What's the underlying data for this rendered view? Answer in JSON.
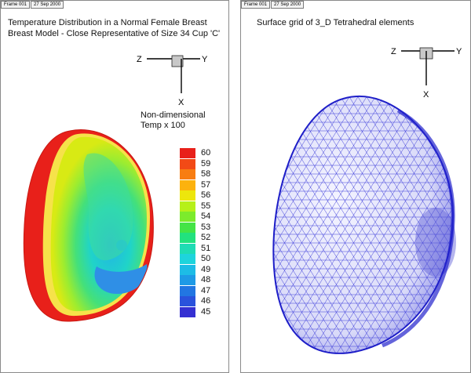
{
  "left_panel": {
    "tabs": [
      "Frame 001",
      "27 Sep 2000"
    ],
    "title_line1": "Temperature Distribution in a Normal Female Breast",
    "title_line2": "Breast Model - Close Representative of Size 34 Cup 'C'",
    "axes": {
      "z": "Z",
      "y": "Y",
      "x": "X"
    },
    "legend_title_line1": "Non-dimensional",
    "legend_title_line2": "Temp x 100",
    "legend_levels": [
      {
        "label": "60",
        "color": "#e8201a"
      },
      {
        "label": "59",
        "color": "#f24a16"
      },
      {
        "label": "58",
        "color": "#f87d12"
      },
      {
        "label": "57",
        "color": "#fcb20e"
      },
      {
        "label": "56",
        "color": "#ede60c"
      },
      {
        "label": "55",
        "color": "#b6f019"
      },
      {
        "label": "54",
        "color": "#7ceb2c"
      },
      {
        "label": "53",
        "color": "#44e446"
      },
      {
        "label": "52",
        "color": "#22e27e"
      },
      {
        "label": "51",
        "color": "#1fdcb4"
      },
      {
        "label": "50",
        "color": "#1ed4dc"
      },
      {
        "label": "49",
        "color": "#1dbce6"
      },
      {
        "label": "48",
        "color": "#1e9ae6"
      },
      {
        "label": "47",
        "color": "#2276e2"
      },
      {
        "label": "46",
        "color": "#2a52dc"
      },
      {
        "label": "45",
        "color": "#3530d2"
      }
    ]
  },
  "right_panel": {
    "tabs": [
      "Frame 001",
      "27 Sep 2000"
    ],
    "title": "Surface grid of 3_D Tetrahedral elements",
    "axes": {
      "z": "Z",
      "y": "Y",
      "x": "X"
    },
    "mesh_color": "#2b2bd6"
  }
}
